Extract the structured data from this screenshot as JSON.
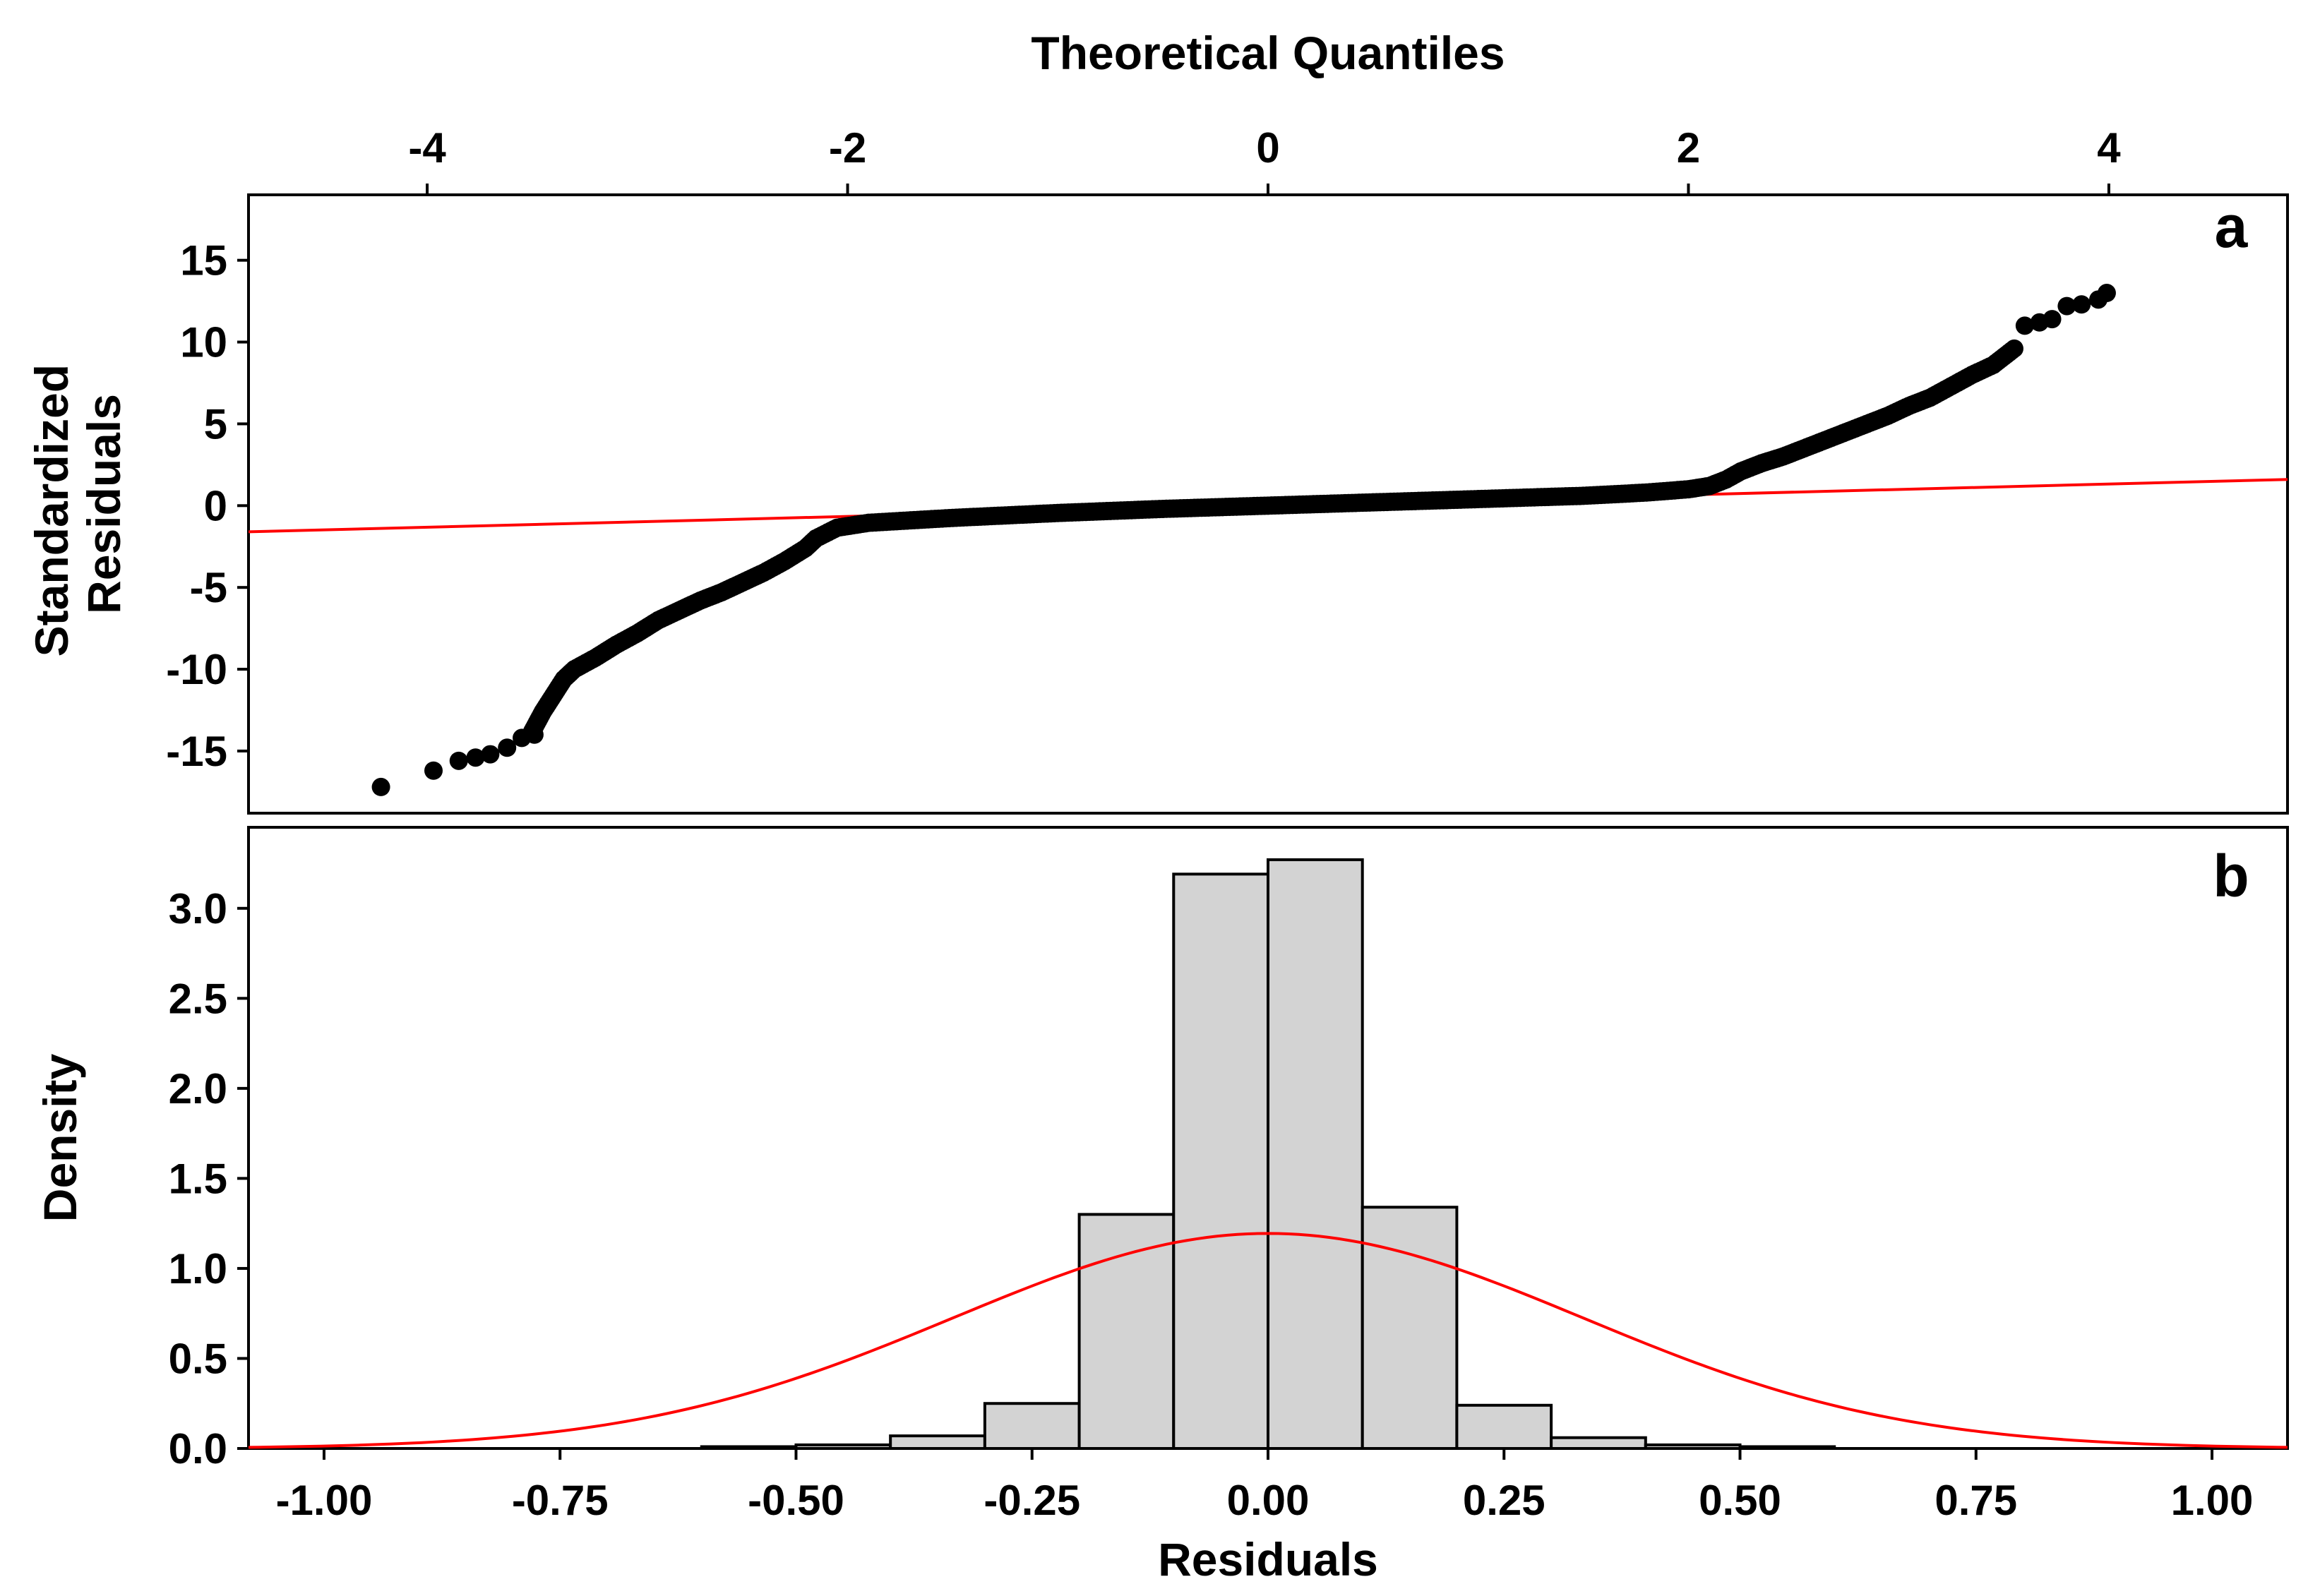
{
  "chart_data": [
    {
      "panel": "a",
      "type": "scatter",
      "title": "",
      "xlabel": "Theoretical Quantiles",
      "ylabel_lines": [
        "Standardized",
        "Residuals"
      ],
      "xlim": [
        -4.85,
        4.85
      ],
      "ylim": [
        -18.8,
        19
      ],
      "x_ticks": [
        -4,
        -2,
        0,
        2,
        4
      ],
      "x_tick_labels": [
        "-4",
        "-2",
        "0",
        "2",
        "4"
      ],
      "y_ticks": [
        15,
        10,
        5,
        0,
        -5,
        -10,
        -15
      ],
      "y_tick_labels": [
        "15",
        "10",
        "5",
        "0",
        "-5",
        "-10",
        "-15"
      ],
      "grid": false,
      "reference_line": {
        "color": "#ff0000",
        "points": [
          [
            -4.85,
            -1.6
          ],
          [
            4.85,
            1.6
          ]
        ]
      },
      "qq_curve": [
        [
          -3.5,
          -13.8
        ],
        [
          -3.45,
          -12.6
        ],
        [
          -3.4,
          -11.6
        ],
        [
          -3.35,
          -10.6
        ],
        [
          -3.3,
          -10.0
        ],
        [
          -3.2,
          -9.3
        ],
        [
          -3.1,
          -8.5
        ],
        [
          -3.0,
          -7.8
        ],
        [
          -2.9,
          -7.0
        ],
        [
          -2.8,
          -6.4
        ],
        [
          -2.7,
          -5.8
        ],
        [
          -2.6,
          -5.3
        ],
        [
          -2.5,
          -4.7
        ],
        [
          -2.4,
          -4.1
        ],
        [
          -2.3,
          -3.4
        ],
        [
          -2.2,
          -2.6
        ],
        [
          -2.15,
          -2.0
        ],
        [
          -2.05,
          -1.35
        ],
        [
          -1.9,
          -1.05
        ],
        [
          -1.5,
          -0.75
        ],
        [
          -1.0,
          -0.45
        ],
        [
          -0.5,
          -0.2
        ],
        [
          0.0,
          0.0
        ],
        [
          0.5,
          0.2
        ],
        [
          1.0,
          0.4
        ],
        [
          1.5,
          0.6
        ],
        [
          1.8,
          0.8
        ],
        [
          2.0,
          1.0
        ],
        [
          2.1,
          1.2
        ],
        [
          2.18,
          1.6
        ],
        [
          2.25,
          2.1
        ],
        [
          2.35,
          2.6
        ],
        [
          2.45,
          3.0
        ],
        [
          2.55,
          3.5
        ],
        [
          2.65,
          4.0
        ],
        [
          2.75,
          4.5
        ],
        [
          2.85,
          5.0
        ],
        [
          2.95,
          5.5
        ],
        [
          3.05,
          6.1
        ],
        [
          3.15,
          6.6
        ],
        [
          3.25,
          7.3
        ],
        [
          3.35,
          8.0
        ],
        [
          3.45,
          8.6
        ],
        [
          3.55,
          9.6
        ]
      ],
      "outlier_points": [
        [
          -4.22,
          -17.2
        ],
        [
          -3.97,
          -16.2
        ],
        [
          -3.85,
          -15.6
        ],
        [
          -3.77,
          -15.4
        ],
        [
          -3.7,
          -15.2
        ],
        [
          -3.62,
          -14.8
        ],
        [
          -3.55,
          -14.2
        ],
        [
          -3.49,
          -14.0
        ],
        [
          3.6,
          11.0
        ],
        [
          3.67,
          11.2
        ],
        [
          3.73,
          11.4
        ],
        [
          3.8,
          12.2
        ],
        [
          3.87,
          12.3
        ],
        [
          3.95,
          12.6
        ],
        [
          3.99,
          13.0
        ]
      ],
      "point_color": "#000000",
      "panel_label": "a"
    },
    {
      "panel": "b",
      "type": "histogram",
      "title": "",
      "xlabel": "Residuals",
      "ylabel": "Density",
      "xlim": [
        -1.08,
        1.08
      ],
      "ylim": [
        0,
        3.45
      ],
      "x_ticks": [
        -1.0,
        -0.75,
        -0.5,
        -0.25,
        0.0,
        0.25,
        0.5,
        0.75,
        1.0
      ],
      "x_tick_labels": [
        "-1.00",
        "-0.75",
        "-0.50",
        "-0.25",
        "0.00",
        "0.25",
        "0.50",
        "0.75",
        "1.00"
      ],
      "y_ticks": [
        0.0,
        0.5,
        1.0,
        1.5,
        2.0,
        2.5,
        3.0
      ],
      "y_tick_labels": [
        "0.0",
        "0.5",
        "1.0",
        "1.5",
        "2.0",
        "2.5",
        "3.0"
      ],
      "grid": false,
      "bins": [
        {
          "x0": -0.6,
          "x1": -0.5,
          "density": 0.01
        },
        {
          "x0": -0.5,
          "x1": -0.4,
          "density": 0.02
        },
        {
          "x0": -0.4,
          "x1": -0.3,
          "density": 0.07
        },
        {
          "x0": -0.3,
          "x1": -0.2,
          "density": 0.25
        },
        {
          "x0": -0.2,
          "x1": -0.1,
          "density": 1.3
        },
        {
          "x0": -0.1,
          "x1": 0.0,
          "density": 3.19
        },
        {
          "x0": 0.0,
          "x1": 0.1,
          "density": 3.27
        },
        {
          "x0": 0.1,
          "x1": 0.2,
          "density": 1.34
        },
        {
          "x0": 0.2,
          "x1": 0.3,
          "density": 0.24
        },
        {
          "x0": 0.3,
          "x1": 0.4,
          "density": 0.06
        },
        {
          "x0": 0.4,
          "x1": 0.5,
          "density": 0.02
        },
        {
          "x0": 0.5,
          "x1": 0.6,
          "density": 0.01
        }
      ],
      "bar_color": "#d3d3d3",
      "normal_curve": {
        "mean": 0.0,
        "sd": 0.334,
        "color": "#ff0000",
        "x_range": [
          -1.08,
          1.08
        ]
      },
      "panel_label": "b"
    }
  ]
}
